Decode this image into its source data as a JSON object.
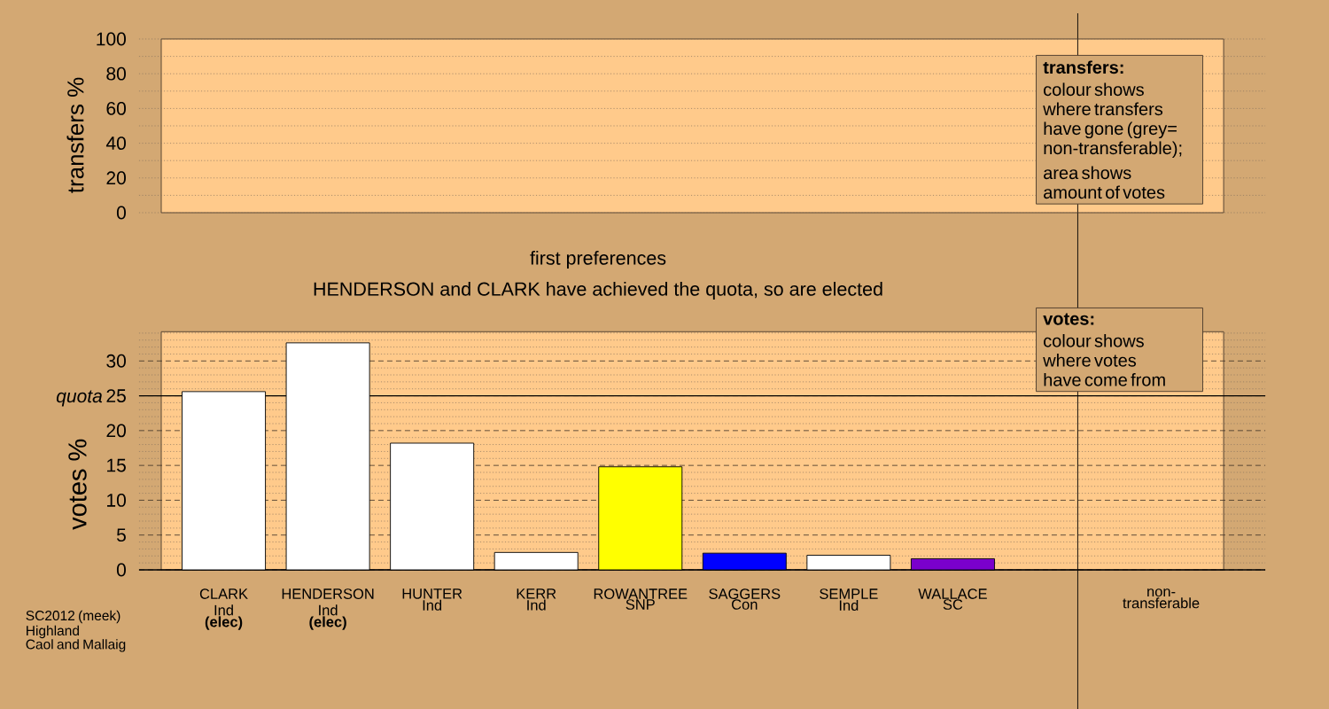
{
  "chart_data": [
    {
      "type": "bar",
      "ylabel": "transfers %",
      "categories": [
        null,
        null,
        null,
        null,
        null,
        null,
        null,
        null,
        null,
        null
      ],
      "values": [
        null,
        null,
        null,
        null,
        null,
        null,
        null,
        null,
        null,
        null
      ],
      "ylim": [
        0,
        100
      ],
      "yticks": [
        0,
        {
          "value": 10,
          "label": null
        },
        20,
        {
          "value": 30,
          "label": null
        },
        40,
        {
          "value": 50,
          "label": null
        },
        60,
        {
          "value": 70,
          "label": null
        },
        80,
        {
          "value": 90,
          "label": null
        },
        100
      ],
      "grid": "y",
      "tick_labels": "y",
      "annotations": [
        "transfers:",
        "colour shows\nwhere transfers\nhave gone (grey=\nnon-transferable);",
        "area shows\namount of votes"
      ]
    },
    {
      "type": "bar",
      "title": "first preferences",
      "subtitle": "HENDERSON and CLARK have achieved the quota, so are elected",
      "ylabel": "votes %",
      "categories": [
        "CLARK\nInd\n**(elec)**",
        "HENDERSON\nInd\n**(elec)**",
        "HUNTER\nInd",
        "KERR\nInd",
        "ROWANTREE\nSNP",
        "SAGGERS\nCon",
        "SEMPLE\nInd",
        "WALLACE\nSC",
        null,
        "non-\ntransferable"
      ],
      "values": [
        25.6,
        32.6,
        18.2,
        2.5,
        14.8,
        2.4,
        2.1,
        1.6,
        null,
        null
      ],
      "colors": [
        "#ffffff",
        "#ffffff",
        "#ffffff",
        "#ffffff",
        "#ffff00",
        "#0000ff",
        "#ffffff",
        "#7a00cc",
        null,
        null
      ],
      "ylim": [
        0,
        34.2
      ],
      "yticks": [
        0,
        {
          "value": 1,
          "label": null
        },
        {
          "value": 2,
          "label": null
        },
        {
          "value": 3,
          "label": null
        },
        {
          "value": 4,
          "label": null
        },
        5,
        {
          "value": 6,
          "label": null
        },
        {
          "value": 7,
          "label": null
        },
        {
          "value": 8,
          "label": null
        },
        {
          "value": 9,
          "label": null
        },
        10,
        {
          "value": 11,
          "label": null
        },
        {
          "value": 12,
          "label": null
        },
        {
          "value": 13,
          "label": null
        },
        {
          "value": 14,
          "label": null
        },
        15,
        {
          "value": 16,
          "label": null
        },
        {
          "value": 17,
          "label": null
        },
        {
          "value": 18,
          "label": null
        },
        {
          "value": 19,
          "label": null
        },
        20,
        {
          "value": 21,
          "label": null
        },
        {
          "value": 22,
          "label": null
        },
        {
          "value": 23,
          "label": null
        },
        {
          "value": 24,
          "label": null
        },
        25,
        {
          "value": 26,
          "label": null
        },
        {
          "value": 27,
          "label": null
        },
        {
          "value": 28,
          "label": null
        },
        {
          "value": 29,
          "label": null
        },
        30,
        {
          "value": 31,
          "label": null
        },
        {
          "value": 32,
          "label": null
        },
        {
          "value": 33,
          "label": null
        },
        {
          "value": 34,
          "label": null
        }
      ],
      "grid": "y",
      "ref_lines": [
        {
          "axis": "y",
          "value": 25,
          "label": "quota",
          "color": "#000000"
        }
      ],
      "annotations": [
        "votes:",
        "colour shows\nwhere votes\nhave come from",
        "SC2012 (meek)\nHighland\nCaol and Mallaig"
      ]
    }
  ]
}
